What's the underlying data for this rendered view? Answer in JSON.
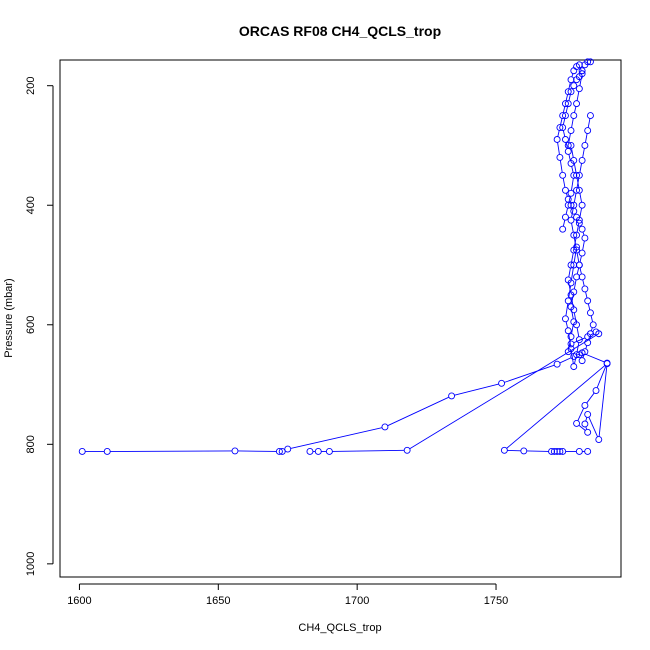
{
  "chart_data": {
    "type": "line",
    "title": "ORCAS RF08 CH4_QCLS_trop",
    "xlabel": "CH4_QCLS_trop",
    "ylabel": "Pressure (mbar)",
    "xlim": [
      1593,
      1795
    ],
    "ylim": [
      1022,
      157
    ],
    "y_reversed": true,
    "x_ticks": [
      1600,
      1650,
      1700,
      1750
    ],
    "y_ticks": [
      200,
      400,
      600,
      800,
      1000
    ],
    "grid": false,
    "marker": "open-circle",
    "color": "#0000ff",
    "series": [
      {
        "x": [
          1601,
          1610,
          1656,
          1672,
          1673,
          1675,
          1710,
          1734,
          1752,
          1772,
          1778,
          1781,
          1790,
          1786,
          1782,
          1779,
          1783,
          1782,
          1783,
          1787,
          1790,
          1753,
          1760,
          1770,
          1771,
          1772,
          1773,
          1774,
          1780,
          1783
        ],
        "y": [
          812,
          812,
          811,
          812,
          812,
          808,
          771,
          719,
          698,
          666,
          653,
          647,
          664,
          710,
          735,
          765,
          780,
          766,
          750,
          792,
          665,
          810,
          811,
          812,
          812,
          812,
          812,
          812,
          812,
          812
        ]
      },
      {
        "x": [
          1683,
          1686,
          1690,
          1718,
          1787,
          1786,
          1783,
          1777
        ],
        "y": [
          812,
          812,
          812,
          810,
          615,
          612,
          620,
          632
        ]
      },
      {
        "x": [
          1776,
          1777,
          1778,
          1777,
          1778,
          1779,
          1780,
          1781,
          1782,
          1781,
          1780,
          1779,
          1778,
          1777,
          1776,
          1775,
          1774,
          1773,
          1772,
          1773,
          1774,
          1775,
          1776,
          1777,
          1778,
          1779,
          1780,
          1781,
          1780,
          1779,
          1778,
          1777,
          1776
        ],
        "y": [
          645,
          620,
          595,
          570,
          545,
          520,
          500,
          480,
          455,
          440,
          430,
          420,
          410,
          400,
          390,
          375,
          350,
          320,
          290,
          270,
          250,
          230,
          210,
          190,
          175,
          168,
          165,
          180,
          205,
          230,
          250,
          275,
          300
        ]
      },
      {
        "x": [
          1777,
          1778,
          1779,
          1780,
          1781,
          1780,
          1779,
          1778,
          1777,
          1776,
          1777,
          1778,
          1779,
          1780,
          1779,
          1778,
          1777,
          1776,
          1775,
          1776,
          1777,
          1778,
          1779
        ],
        "y": [
          300,
          325,
          350,
          375,
          400,
          425,
          450,
          475,
          500,
          525,
          550,
          575,
          600,
          625,
          650,
          670,
          640,
          610,
          590,
          560,
          530,
          500,
          470
        ]
      },
      {
        "x": [
          1784,
          1783,
          1782,
          1781,
          1780,
          1779,
          1778,
          1777,
          1778,
          1779,
          1780,
          1781,
          1782,
          1783,
          1784,
          1785,
          1784,
          1783,
          1782,
          1781,
          1780
        ],
        "y": [
          250,
          275,
          300,
          325,
          350,
          375,
          400,
          425,
          450,
          475,
          500,
          520,
          540,
          560,
          580,
          600,
          615,
          630,
          645,
          660,
          650
        ]
      },
      {
        "x": [
          1774,
          1775,
          1776,
          1777,
          1778,
          1777,
          1776,
          1775,
          1774,
          1775,
          1776,
          1777,
          1778,
          1779,
          1780,
          1781,
          1782,
          1783,
          1784
        ],
        "y": [
          440,
          420,
          400,
          380,
          350,
          330,
          310,
          290,
          270,
          250,
          230,
          210,
          200,
          190,
          185,
          175,
          165,
          160,
          160
        ]
      }
    ]
  }
}
